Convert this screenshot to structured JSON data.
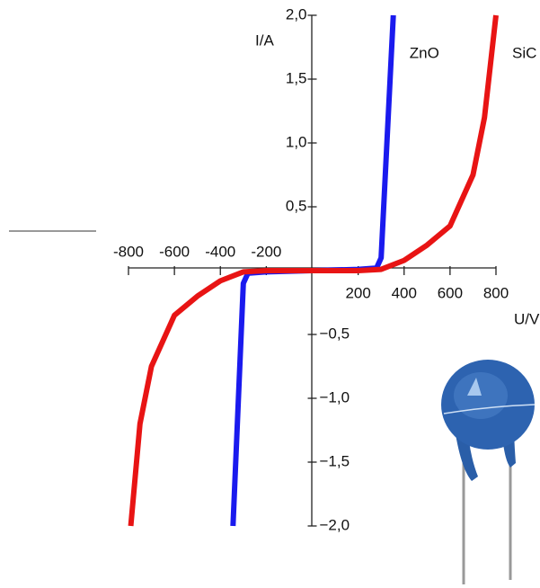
{
  "chart_data": {
    "type": "line",
    "x_label": "U/V",
    "y_label": "I/A",
    "xlim": [
      -800,
      800
    ],
    "ylim": [
      -2,
      2
    ],
    "xticks": [
      -800,
      -600,
      -400,
      -200,
      200,
      400,
      600,
      800
    ],
    "yticks": [
      {
        "value": 2,
        "label": "2,0"
      },
      {
        "value": 1.5,
        "label": "1,5"
      },
      {
        "value": 1,
        "label": "1,0"
      },
      {
        "value": 0.5,
        "label": "0,5"
      },
      {
        "value": -0.5,
        "label": "−0,5"
      },
      {
        "value": -1,
        "label": "−1,0"
      },
      {
        "value": -1.5,
        "label": "−1,5"
      },
      {
        "value": -2,
        "label": "−2,0"
      }
    ],
    "series": [
      {
        "name": "ZnO",
        "color": "#1a1aee",
        "x": [
          -345,
          -300,
          -280,
          -200,
          0,
          200,
          280,
          300,
          353
        ],
        "values": [
          -2,
          -0.1,
          -0.02,
          -0.01,
          0,
          0.01,
          0.02,
          0.1,
          2
        ]
      },
      {
        "name": "SiC",
        "color": "#e81414",
        "x": [
          -790,
          -750,
          -700,
          -600,
          -500,
          -400,
          -300,
          -200,
          0,
          200,
          300,
          400,
          500,
          600,
          700,
          750,
          800
        ],
        "values": [
          -2,
          -1.2,
          -0.75,
          -0.35,
          -0.2,
          -0.08,
          -0.01,
          0,
          0,
          0,
          0.01,
          0.08,
          0.2,
          0.35,
          0.75,
          1.2,
          2
        ]
      }
    ]
  }
}
